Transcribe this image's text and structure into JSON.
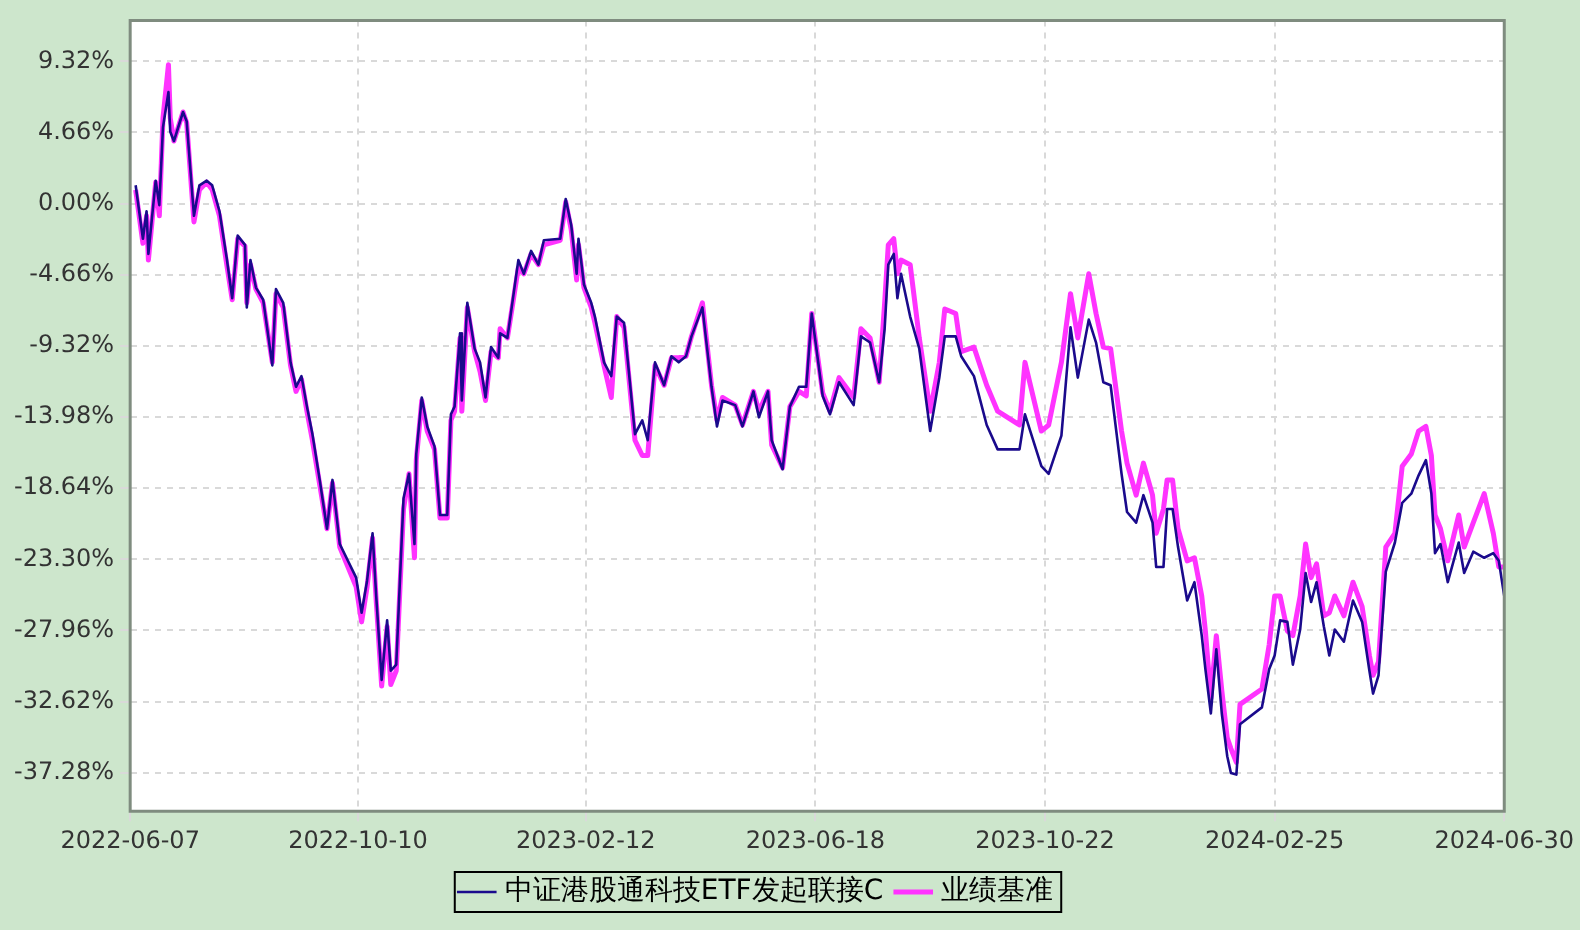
{
  "chart_data": {
    "type": "line",
    "x": [
      "2022-06-10",
      "2022-06-14",
      "2022-06-16",
      "2022-06-17",
      "2022-06-21",
      "2022-06-23",
      "2022-06-25",
      "2022-06-28",
      "2022-06-29",
      "2022-07-01",
      "2022-07-06",
      "2022-07-08",
      "2022-07-12",
      "2022-07-15",
      "2022-07-19",
      "2022-07-22",
      "2022-07-26",
      "2022-07-30",
      "2022-08-02",
      "2022-08-05",
      "2022-08-09",
      "2022-08-10",
      "2022-08-12",
      "2022-08-15",
      "2022-08-19",
      "2022-08-24",
      "2022-08-26",
      "2022-08-30",
      "2022-09-03",
      "2022-09-06",
      "2022-09-09",
      "2022-09-12",
      "2022-09-15",
      "2022-09-19",
      "2022-09-23",
      "2022-09-26",
      "2022-09-30",
      "2022-10-09",
      "2022-10-12",
      "2022-10-15",
      "2022-10-18",
      "2022-10-20",
      "2022-10-23",
      "2022-10-26",
      "2022-10-28",
      "2022-10-31",
      "2022-11-04",
      "2022-11-07",
      "2022-11-10",
      "2022-11-11",
      "2022-11-14",
      "2022-11-17",
      "2022-11-21",
      "2022-11-24",
      "2022-11-28",
      "2022-11-30",
      "2022-12-02",
      "2022-12-05",
      "2022-12-06",
      "2022-12-09",
      "2022-12-13",
      "2022-12-16",
      "2022-12-19",
      "2022-12-22",
      "2022-12-26",
      "2022-12-27",
      "2022-12-31",
      "2023-01-06",
      "2023-01-09",
      "2023-01-13",
      "2023-01-17",
      "2023-01-20",
      "2023-01-29",
      "2023-02-01",
      "2023-02-04",
      "2023-02-07",
      "2023-02-08",
      "2023-02-11",
      "2023-02-15",
      "2023-02-17",
      "2023-02-22",
      "2023-02-26",
      "2023-03-01",
      "2023-03-05",
      "2023-03-11",
      "2023-03-15",
      "2023-03-18",
      "2023-03-22",
      "2023-03-27",
      "2023-03-31",
      "2023-04-04",
      "2023-04-08",
      "2023-04-11",
      "2023-04-17",
      "2023-04-22",
      "2023-04-25",
      "2023-04-28",
      "2023-05-05",
      "2023-05-09",
      "2023-05-15",
      "2023-05-18",
      "2023-05-23",
      "2023-05-25",
      "2023-05-31",
      "2023-06-04",
      "2023-06-09",
      "2023-06-13",
      "2023-06-16",
      "2023-06-22",
      "2023-06-26",
      "2023-07-01",
      "2023-07-09",
      "2023-07-13",
      "2023-07-18",
      "2023-07-23",
      "2023-07-26",
      "2023-07-28",
      "2023-07-31",
      "2023-08-02",
      "2023-08-04",
      "2023-08-09",
      "2023-08-14",
      "2023-08-20",
      "2023-08-25",
      "2023-08-28",
      "2023-09-03",
      "2023-09-06",
      "2023-09-13",
      "2023-09-20",
      "2023-09-26",
      "2023-10-08",
      "2023-10-11",
      "2023-10-20",
      "2023-10-24",
      "2023-10-31",
      "2023-11-05",
      "2023-11-09",
      "2023-11-15",
      "2023-11-19",
      "2023-11-23",
      "2023-11-27",
      "2023-12-03",
      "2023-12-06",
      "2023-12-11",
      "2023-12-15",
      "2023-12-20",
      "2023-12-22",
      "2023-12-26",
      "2023-12-28",
      "2023-12-31",
      "2024-01-03",
      "2024-01-08",
      "2024-01-12",
      "2024-01-16",
      "2024-01-18",
      "2024-01-21",
      "2024-01-24",
      "2024-01-27",
      "2024-01-30",
      "2024-02-01",
      "2024-02-04",
      "2024-02-06",
      "2024-02-18",
      "2024-02-22",
      "2024-02-25",
      "2024-02-28",
      "2024-03-03",
      "2024-03-06",
      "2024-03-10",
      "2024-03-13",
      "2024-03-16",
      "2024-03-19",
      "2024-03-23",
      "2024-03-26",
      "2024-03-29",
      "2024-04-03",
      "2024-04-08",
      "2024-04-13",
      "2024-04-17",
      "2024-04-19",
      "2024-04-22",
      "2024-04-26",
      "2024-05-01",
      "2024-05-05",
      "2024-05-10",
      "2024-05-14",
      "2024-05-18",
      "2024-05-21",
      "2024-05-23",
      "2024-05-26",
      "2024-05-30",
      "2024-06-05",
      "2024-06-08",
      "2024-06-13",
      "2024-06-19",
      "2024-06-24",
      "2024-06-27",
      "2024-06-30"
    ],
    "series": [
      {
        "name": "中证港股通科技ETF发起联接C",
        "color": "#1a0a8c",
        "values": [
          1.2,
          -2.3,
          -0.5,
          -3.3,
          1.5,
          -0.1,
          5.0,
          7.3,
          4.7,
          4.1,
          6.0,
          5.4,
          -0.8,
          1.2,
          1.5,
          1.2,
          -0.5,
          -3.6,
          -6.2,
          -2.1,
          -2.7,
          -6.8,
          -3.7,
          -5.5,
          -6.3,
          -10.6,
          -5.6,
          -6.5,
          -10.4,
          -12.0,
          -11.3,
          -13.3,
          -15.1,
          -18.1,
          -21.3,
          -18.1,
          -22.3,
          -24.5,
          -26.8,
          -24.7,
          -21.6,
          -25.7,
          -31.2,
          -27.3,
          -30.6,
          -30.2,
          -19.3,
          -17.7,
          -22.3,
          -16.4,
          -12.7,
          -14.6,
          -15.9,
          -20.4,
          -20.4,
          -13.8,
          -13.3,
          -8.5,
          -12.9,
          -6.5,
          -9.5,
          -10.4,
          -12.7,
          -9.4,
          -10.1,
          -8.5,
          -8.8,
          -3.7,
          -4.6,
          -3.1,
          -4.0,
          -2.4,
          -2.3,
          0.3,
          -1.4,
          -4.6,
          -2.3,
          -5.3,
          -6.5,
          -7.4,
          -10.4,
          -11.3,
          -7.4,
          -7.8,
          -15.1,
          -14.2,
          -15.5,
          -10.4,
          -11.9,
          -10.0,
          -10.4,
          -10.0,
          -8.7,
          -6.8,
          -12.0,
          -14.6,
          -12.9,
          -13.2,
          -14.6,
          -12.3,
          -14.0,
          -12.3,
          -15.5,
          -17.4,
          -13.3,
          -12.0,
          -12.0,
          -7.2,
          -12.6,
          -13.8,
          -11.7,
          -13.2,
          -8.7,
          -9.1,
          -11.7,
          -8.2,
          -4.0,
          -3.3,
          -6.2,
          -4.6,
          -7.4,
          -9.5,
          -14.9,
          -11.4,
          -8.7,
          -8.7,
          -10.0,
          -11.3,
          -14.5,
          -16.1,
          -16.1,
          -13.8,
          -17.2,
          -17.7,
          -15.2,
          -8.1,
          -11.4,
          -7.6,
          -9.1,
          -11.7,
          -11.9,
          -17.7,
          -20.2,
          -20.9,
          -19.1,
          -20.9,
          -23.8,
          -23.8,
          -20.0,
          -20.0,
          -22.5,
          -26.0,
          -24.8,
          -28.3,
          -30.5,
          -33.4,
          -29.2,
          -33.4,
          -36.2,
          -37.3,
          -37.4,
          -34.1,
          -33.0,
          -30.5,
          -29.6,
          -27.3,
          -27.4,
          -30.2,
          -27.9,
          -24.2,
          -26.1,
          -24.8,
          -27.7,
          -29.6,
          -27.9,
          -28.7,
          -26.0,
          -27.4,
          -30.6,
          -32.1,
          -30.9,
          -24.1,
          -22.2,
          -19.6,
          -19.0,
          -17.8,
          -16.8,
          -19.0,
          -22.9,
          -22.3,
          -24.8,
          -22.2,
          -24.2,
          -22.8,
          -23.2,
          -22.9,
          -23.4,
          -25.7
        ]
      },
      {
        "name": "业绩基准",
        "color": "#ff33ff",
        "values": [
          0.9,
          -2.6,
          -0.8,
          -3.7,
          1.4,
          -0.8,
          5.6,
          9.1,
          5.6,
          4.1,
          6.0,
          5.3,
          -1.2,
          0.9,
          1.4,
          0.9,
          -0.8,
          -4.0,
          -6.3,
          -2.3,
          -2.8,
          -6.5,
          -4.0,
          -5.6,
          -6.5,
          -10.4,
          -5.9,
          -6.8,
          -10.6,
          -12.3,
          -11.5,
          -13.6,
          -15.5,
          -18.4,
          -21.3,
          -18.3,
          -22.5,
          -25.1,
          -27.4,
          -25.1,
          -21.9,
          -26.0,
          -31.6,
          -27.7,
          -31.5,
          -30.6,
          -20.0,
          -17.7,
          -23.2,
          -16.8,
          -12.9,
          -14.9,
          -16.1,
          -20.6,
          -20.6,
          -14.2,
          -13.6,
          -8.8,
          -13.6,
          -6.8,
          -9.7,
          -11.0,
          -12.9,
          -9.7,
          -10.1,
          -8.2,
          -8.8,
          -4.2,
          -4.6,
          -3.3,
          -4.0,
          -2.7,
          -2.4,
          0.1,
          -1.7,
          -5.0,
          -2.7,
          -5.5,
          -6.8,
          -7.8,
          -10.6,
          -12.7,
          -7.4,
          -8.1,
          -15.5,
          -16.5,
          -16.5,
          -10.6,
          -11.9,
          -10.1,
          -10.1,
          -10.0,
          -8.7,
          -6.5,
          -11.9,
          -14.2,
          -12.7,
          -13.2,
          -14.5,
          -12.3,
          -13.6,
          -12.3,
          -15.8,
          -17.3,
          -13.3,
          -12.3,
          -12.6,
          -7.2,
          -12.4,
          -13.6,
          -11.4,
          -12.7,
          -8.2,
          -8.8,
          -11.7,
          -6.5,
          -2.7,
          -2.3,
          -4.6,
          -3.7,
          -4.0,
          -8.8,
          -13.6,
          -10.4,
          -6.9,
          -7.2,
          -9.7,
          -9.4,
          -11.9,
          -13.6,
          -14.5,
          -10.4,
          -14.9,
          -14.5,
          -10.4,
          -5.9,
          -8.8,
          -4.6,
          -7.2,
          -9.4,
          -9.5,
          -14.9,
          -17.0,
          -19.1,
          -17.0,
          -19.1,
          -21.6,
          -20.0,
          -18.1,
          -18.1,
          -21.3,
          -23.4,
          -23.2,
          -25.7,
          -28.0,
          -32.4,
          -28.3,
          -31.9,
          -35.0,
          -35.7,
          -36.6,
          -32.8,
          -31.8,
          -28.9,
          -25.7,
          -25.7,
          -28.0,
          -28.3,
          -25.7,
          -22.3,
          -24.5,
          -23.6,
          -27.0,
          -26.8,
          -25.7,
          -27.0,
          -24.8,
          -26.4,
          -29.6,
          -30.9,
          -30.0,
          -22.5,
          -21.6,
          -17.2,
          -16.4,
          -14.9,
          -14.6,
          -16.5,
          -20.4,
          -21.3,
          -23.4,
          -20.4,
          -22.5,
          -20.9,
          -19.0,
          -21.6,
          -23.8,
          -23.8
        ]
      }
    ],
    "xlim": [
      "2022-06-07",
      "2024-06-30"
    ],
    "xticks": [
      "2022-06-07",
      "2022-10-10",
      "2023-02-12",
      "2023-06-18",
      "2023-10-22",
      "2024-02-25",
      "2024-06-30"
    ],
    "ylim": [
      -39.8,
      12.0
    ],
    "yticks": [
      {
        "value": 9.32,
        "label": "9.32%"
      },
      {
        "value": 4.66,
        "label": "4.66%"
      },
      {
        "value": 0,
        "label": "0.00%"
      },
      {
        "value": -4.66,
        "label": "-4.66%"
      },
      {
        "value": -9.32,
        "label": "-9.32%"
      },
      {
        "value": -13.98,
        "label": "-13.98%"
      },
      {
        "value": -18.64,
        "label": "-18.64%"
      },
      {
        "value": -23.3,
        "label": "-23.30%"
      },
      {
        "value": -27.96,
        "label": "-27.96%"
      },
      {
        "value": -32.62,
        "label": "-32.62%"
      },
      {
        "value": -37.28,
        "label": "-37.28%"
      }
    ],
    "grid": true,
    "legend": "bottom",
    "marker": "none",
    "line_style": "solid"
  }
}
